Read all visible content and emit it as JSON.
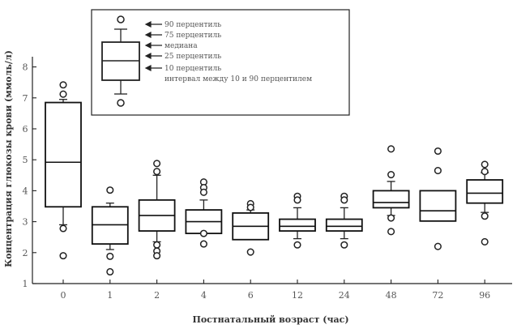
{
  "chart_data": {
    "type": "boxplot",
    "title": "",
    "xlabel": "Постнатальный возраст (час)",
    "ylabel": "Концентрация глюкозы крови (ммоль/л)",
    "ylim": [
      1,
      8
    ],
    "yticks": [
      1,
      2,
      3,
      4,
      5,
      6,
      7,
      8
    ],
    "grid": false,
    "legend": {
      "placement": "top-left",
      "labels": {
        "p90": "90 перцентиль",
        "p75": "75 перцентиль",
        "median": "медиана",
        "p25": "25 перцентиль",
        "p10": "10 перцентиль",
        "range": "интервал между 10 и 90 перцентилем"
      }
    },
    "groups": [
      {
        "label": "0",
        "q1": 3.48,
        "median": 4.92,
        "q3": 6.85,
        "whisker_low": 2.9,
        "whisker_high": 6.95,
        "outliers": [
          7.42,
          7.12,
          2.78,
          1.9
        ]
      },
      {
        "label": "1",
        "q1": 2.28,
        "median": 2.9,
        "q3": 3.48,
        "whisker_low": 2.1,
        "whisker_high": 3.6,
        "outliers": [
          4.02,
          1.88,
          1.38
        ]
      },
      {
        "label": "2",
        "q1": 2.7,
        "median": 3.2,
        "q3": 3.7,
        "whisker_low": 2.35,
        "whisker_high": 4.5,
        "outliers": [
          4.88,
          4.62,
          2.25,
          2.05,
          1.9
        ]
      },
      {
        "label": "4",
        "q1": 2.62,
        "median": 3.0,
        "q3": 3.38,
        "whisker_low": 2.62,
        "whisker_high": 3.7,
        "outliers": [
          4.28,
          4.1,
          3.95,
          2.62,
          2.28
        ]
      },
      {
        "label": "6",
        "q1": 2.42,
        "median": 2.85,
        "q3": 3.28,
        "whisker_low": 2.42,
        "whisker_high": 3.38,
        "outliers": [
          3.58,
          3.46,
          2.02
        ]
      },
      {
        "label": "12",
        "q1": 2.7,
        "median": 2.85,
        "q3": 3.08,
        "whisker_low": 2.45,
        "whisker_high": 3.45,
        "outliers": [
          3.82,
          3.7,
          2.25
        ]
      },
      {
        "label": "24",
        "q1": 2.7,
        "median": 2.85,
        "q3": 3.08,
        "whisker_low": 2.45,
        "whisker_high": 3.45,
        "outliers": [
          3.82,
          3.7,
          2.25
        ]
      },
      {
        "label": "48",
        "q1": 3.45,
        "median": 3.62,
        "q3": 4.0,
        "whisker_low": 3.2,
        "whisker_high": 4.3,
        "outliers": [
          5.35,
          4.52,
          3.12,
          2.68
        ]
      },
      {
        "label": "72",
        "q1": 3.02,
        "median": 3.35,
        "q3": 4.0,
        "whisker_low": 3.02,
        "whisker_high": 4.0,
        "outliers": [
          5.28,
          4.65,
          2.2
        ]
      },
      {
        "label": "96",
        "q1": 3.6,
        "median": 3.92,
        "q3": 4.35,
        "whisker_low": 3.3,
        "whisker_high": 4.58,
        "outliers": [
          4.85,
          4.62,
          3.18,
          2.35
        ]
      }
    ]
  }
}
